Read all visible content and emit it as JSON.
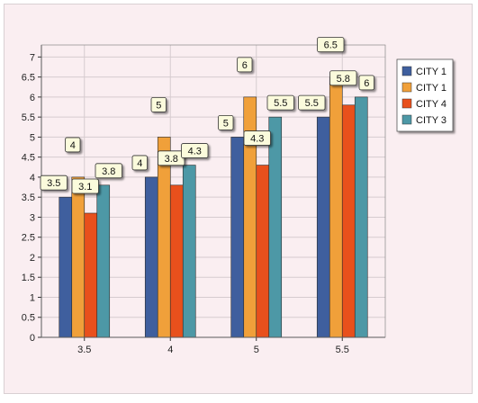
{
  "chart_data": {
    "type": "bar",
    "categories": [
      "3.5",
      "4",
      "5",
      "5.5"
    ],
    "series": [
      {
        "name": "CITY 1",
        "color": "#3f5f9e",
        "values": [
          3.5,
          4,
          5,
          5.5
        ]
      },
      {
        "name": "CITY 1",
        "color": "#f0a03a",
        "values": [
          4,
          5,
          6,
          6.5
        ]
      },
      {
        "name": "CITY 4",
        "color": "#e8501c",
        "values": [
          3.1,
          3.8,
          4.3,
          5.8
        ]
      },
      {
        "name": "CITY 3",
        "color": "#4d98a6",
        "values": [
          3.8,
          4.3,
          5.5,
          6
        ]
      }
    ],
    "ylim": [
      0,
      7.3
    ],
    "yticks": [
      "0",
      "0.5",
      "1",
      "1.5",
      "2",
      "2.5",
      "3",
      "3.5",
      "4",
      "4.5",
      "5",
      "5.5",
      "6",
      "6.5",
      "7"
    ],
    "grid": true,
    "data_labels": true,
    "legend_position": "right"
  }
}
